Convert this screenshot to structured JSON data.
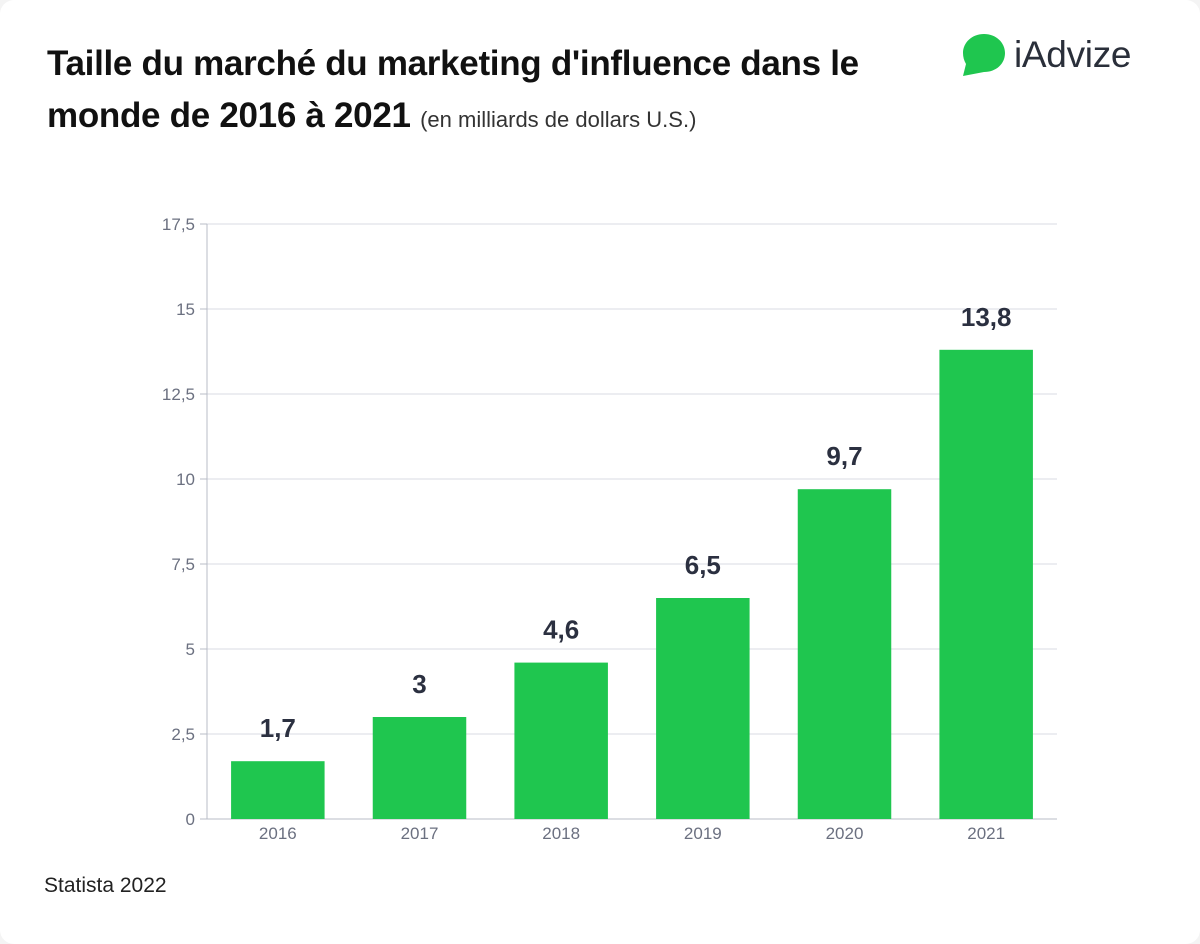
{
  "title": "Taille du marché du marketing d'influence dans le monde de 2016 à 2021",
  "subtitle": "(en milliards de dollars U.S.)",
  "brand": {
    "name": "iAdvize",
    "color": "#1fc64f",
    "icon": "chat-bubble-icon"
  },
  "source": "Statista 2022",
  "colors": {
    "bar": "#1fc64f",
    "grid": "#d9dbe3",
    "axis": "#b8bcc7"
  },
  "chart_data": {
    "type": "bar",
    "categories": [
      "2016",
      "2017",
      "2018",
      "2019",
      "2020",
      "2021"
    ],
    "values": [
      1.7,
      3,
      4.6,
      6.5,
      9.7,
      13.8
    ],
    "data_labels": [
      "1,7",
      "3",
      "4,6",
      "6,5",
      "9,7",
      "13,8"
    ],
    "ylim": [
      0,
      17.5
    ],
    "yticks": [
      0,
      2.5,
      5,
      7.5,
      10,
      12.5,
      15,
      17.5
    ],
    "ytick_labels": [
      "0",
      "2,5",
      "5",
      "7,5",
      "10",
      "12,5",
      "15",
      "17,5"
    ],
    "grid": true,
    "legend": "none"
  }
}
